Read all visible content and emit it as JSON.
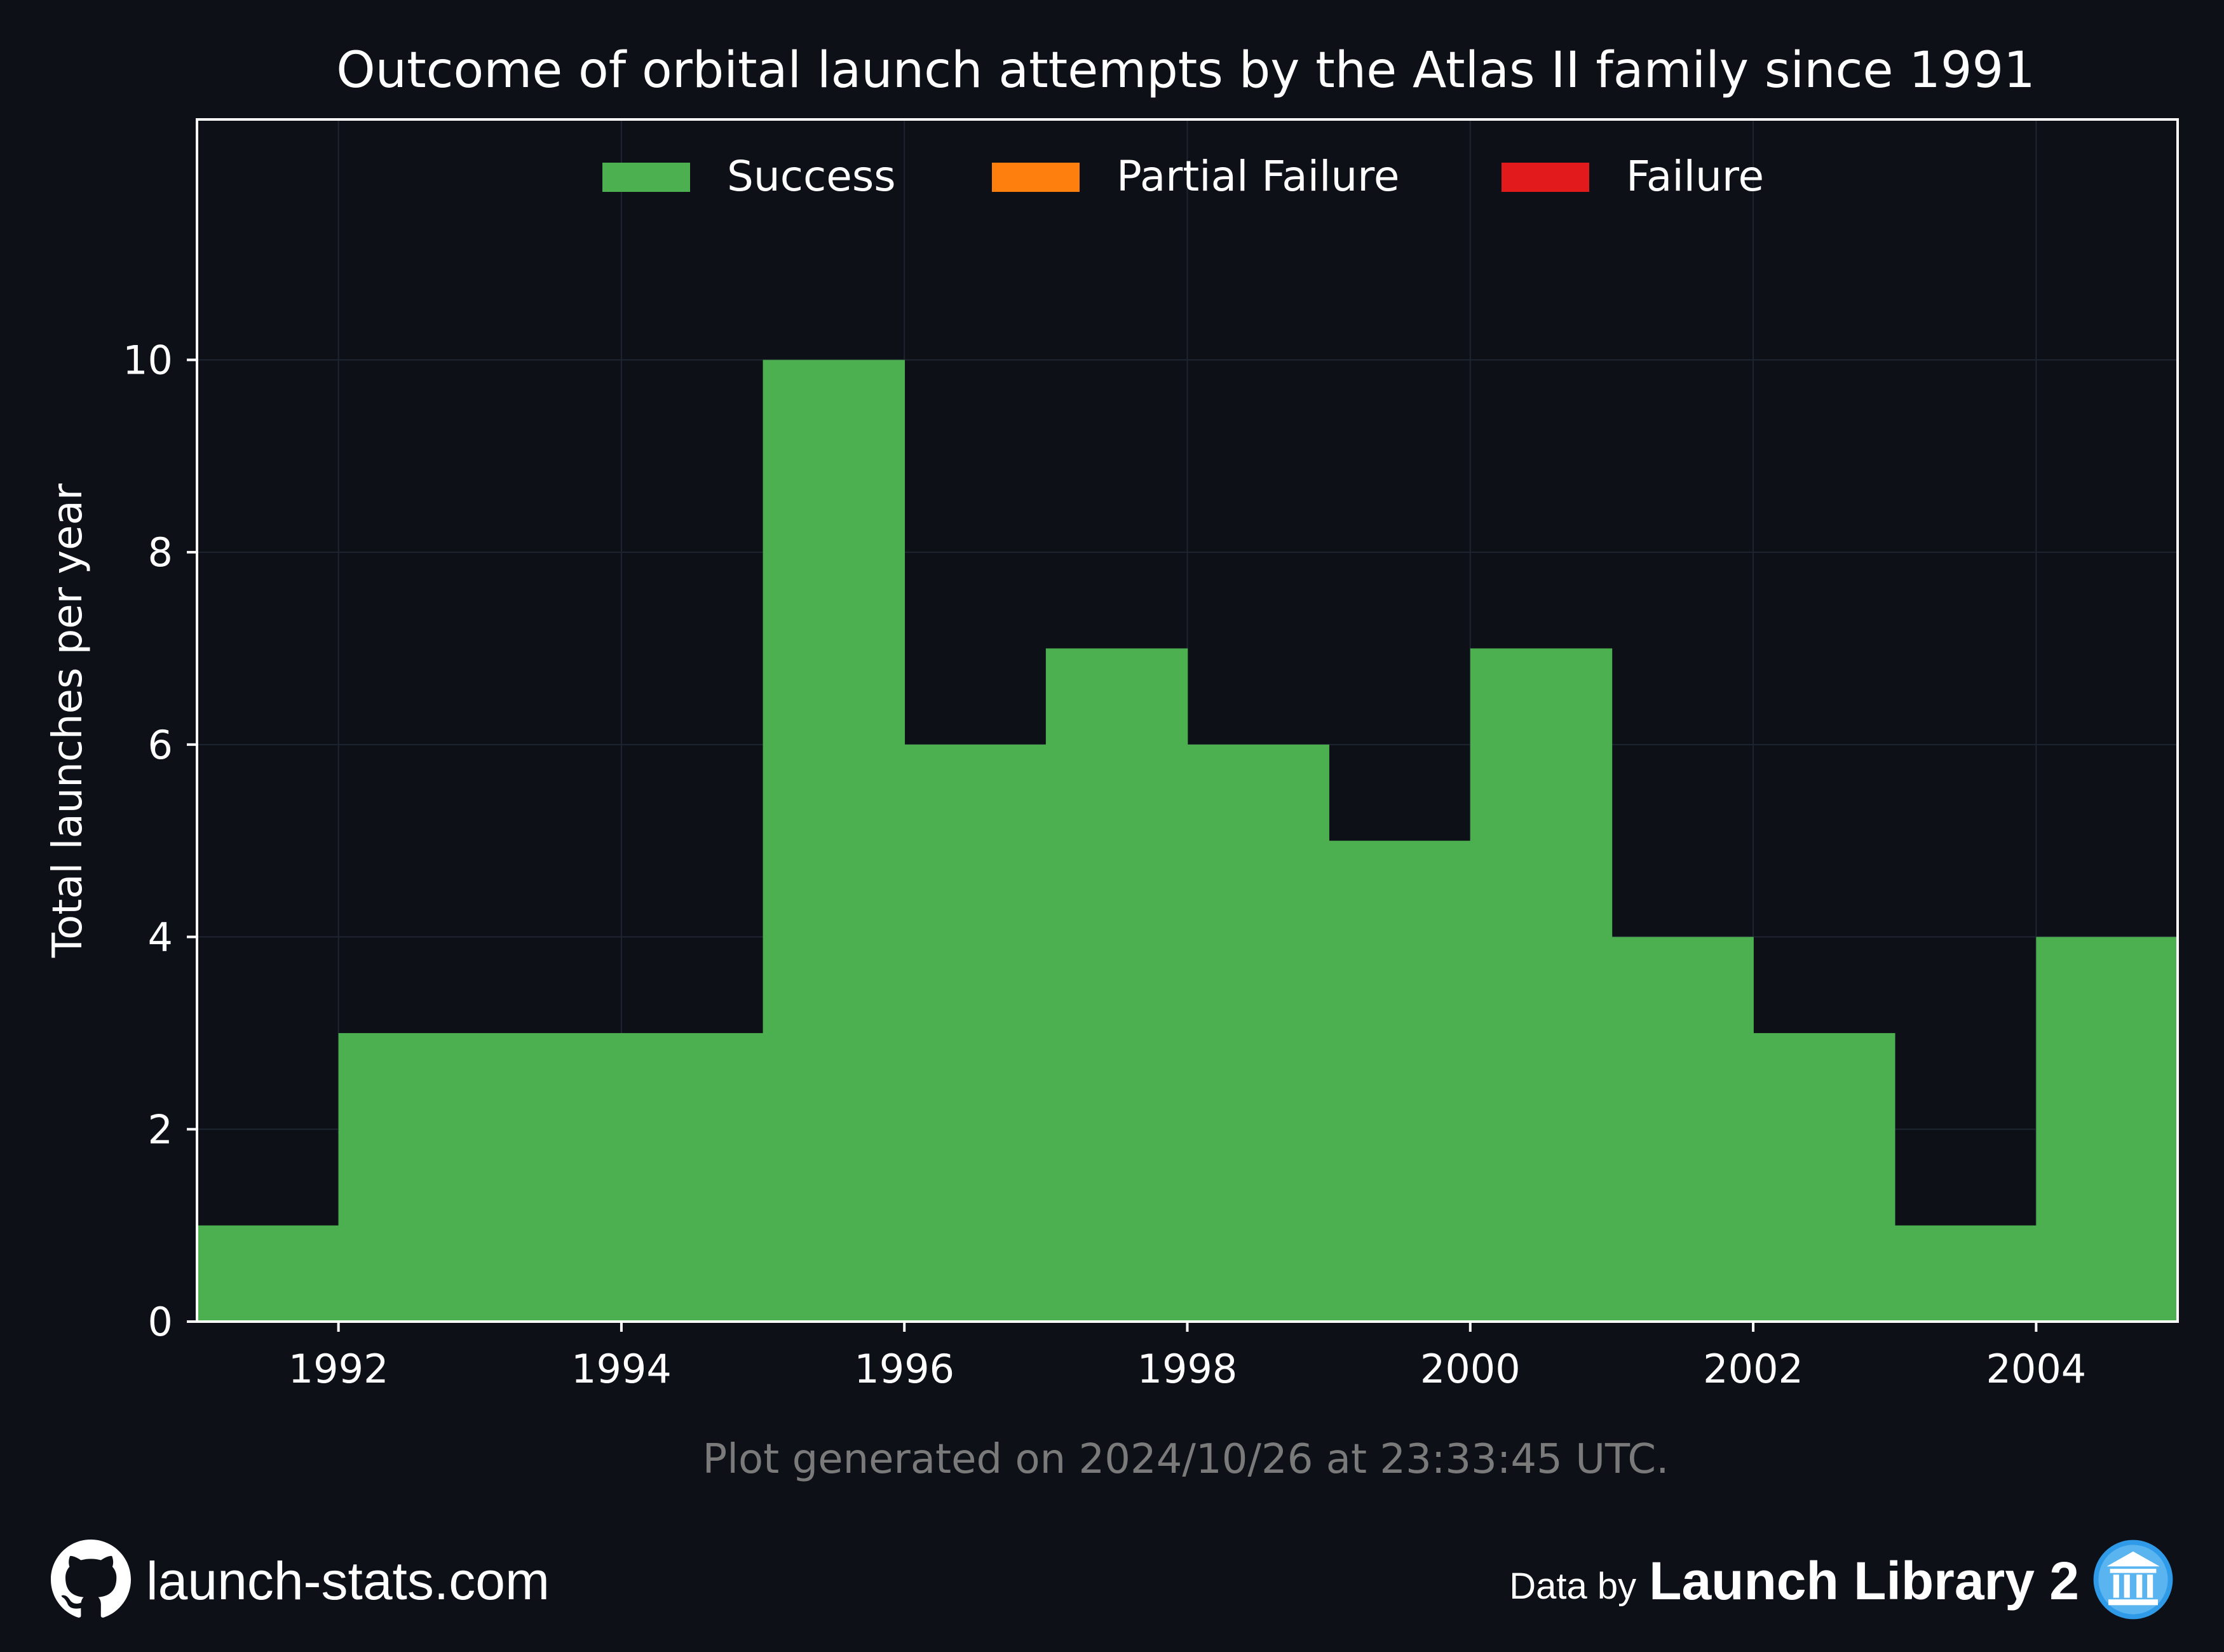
{
  "chart_data": {
    "type": "histogram",
    "title": "Outcome of orbital launch attempts by the Atlas II family since 1991",
    "ylabel": "Total launches per year",
    "xlabel": "",
    "xlim": [
      1991,
      2005
    ],
    "ylim": [
      0,
      12.5
    ],
    "x_ticks": [
      1992,
      1994,
      1996,
      1998,
      2000,
      2002,
      2004
    ],
    "y_ticks": [
      0,
      2,
      4,
      6,
      8,
      10
    ],
    "grid": true,
    "legend_position": "top-center",
    "bins": [
      1991,
      1992,
      1993,
      1994,
      1995,
      1996,
      1997,
      1998,
      1999,
      2000,
      2001,
      2002,
      2003,
      2004,
      2005
    ],
    "series": [
      {
        "name": "Success",
        "color": "#4caf50",
        "values": [
          1,
          3,
          3,
          3,
          10,
          6,
          7,
          6,
          5,
          7,
          4,
          3,
          1,
          4
        ]
      },
      {
        "name": "Partial Failure",
        "color": "#ff7f0e",
        "values": [
          0,
          0,
          0,
          0,
          0,
          0,
          0,
          0,
          0,
          0,
          0,
          0,
          0,
          0
        ]
      },
      {
        "name": "Failure",
        "color": "#e31a1c",
        "values": [
          0,
          0,
          0,
          0,
          0,
          0,
          0,
          0,
          0,
          0,
          0,
          0,
          0,
          0
        ]
      }
    ]
  },
  "timestamp": "Plot generated on 2024/10/26 at 23:33:45 UTC.",
  "footer": {
    "site": "launch-stats.com",
    "data_by": "Data by",
    "library": "Launch Library 2",
    "github_icon": "github-icon",
    "library_icon": "library-building-icon"
  },
  "colors": {
    "background": "#0d1017",
    "grid": "#1f2530",
    "axes": "#ffffff",
    "timestamp": "#7a7a7a",
    "library_badge": "#2f9be8"
  }
}
